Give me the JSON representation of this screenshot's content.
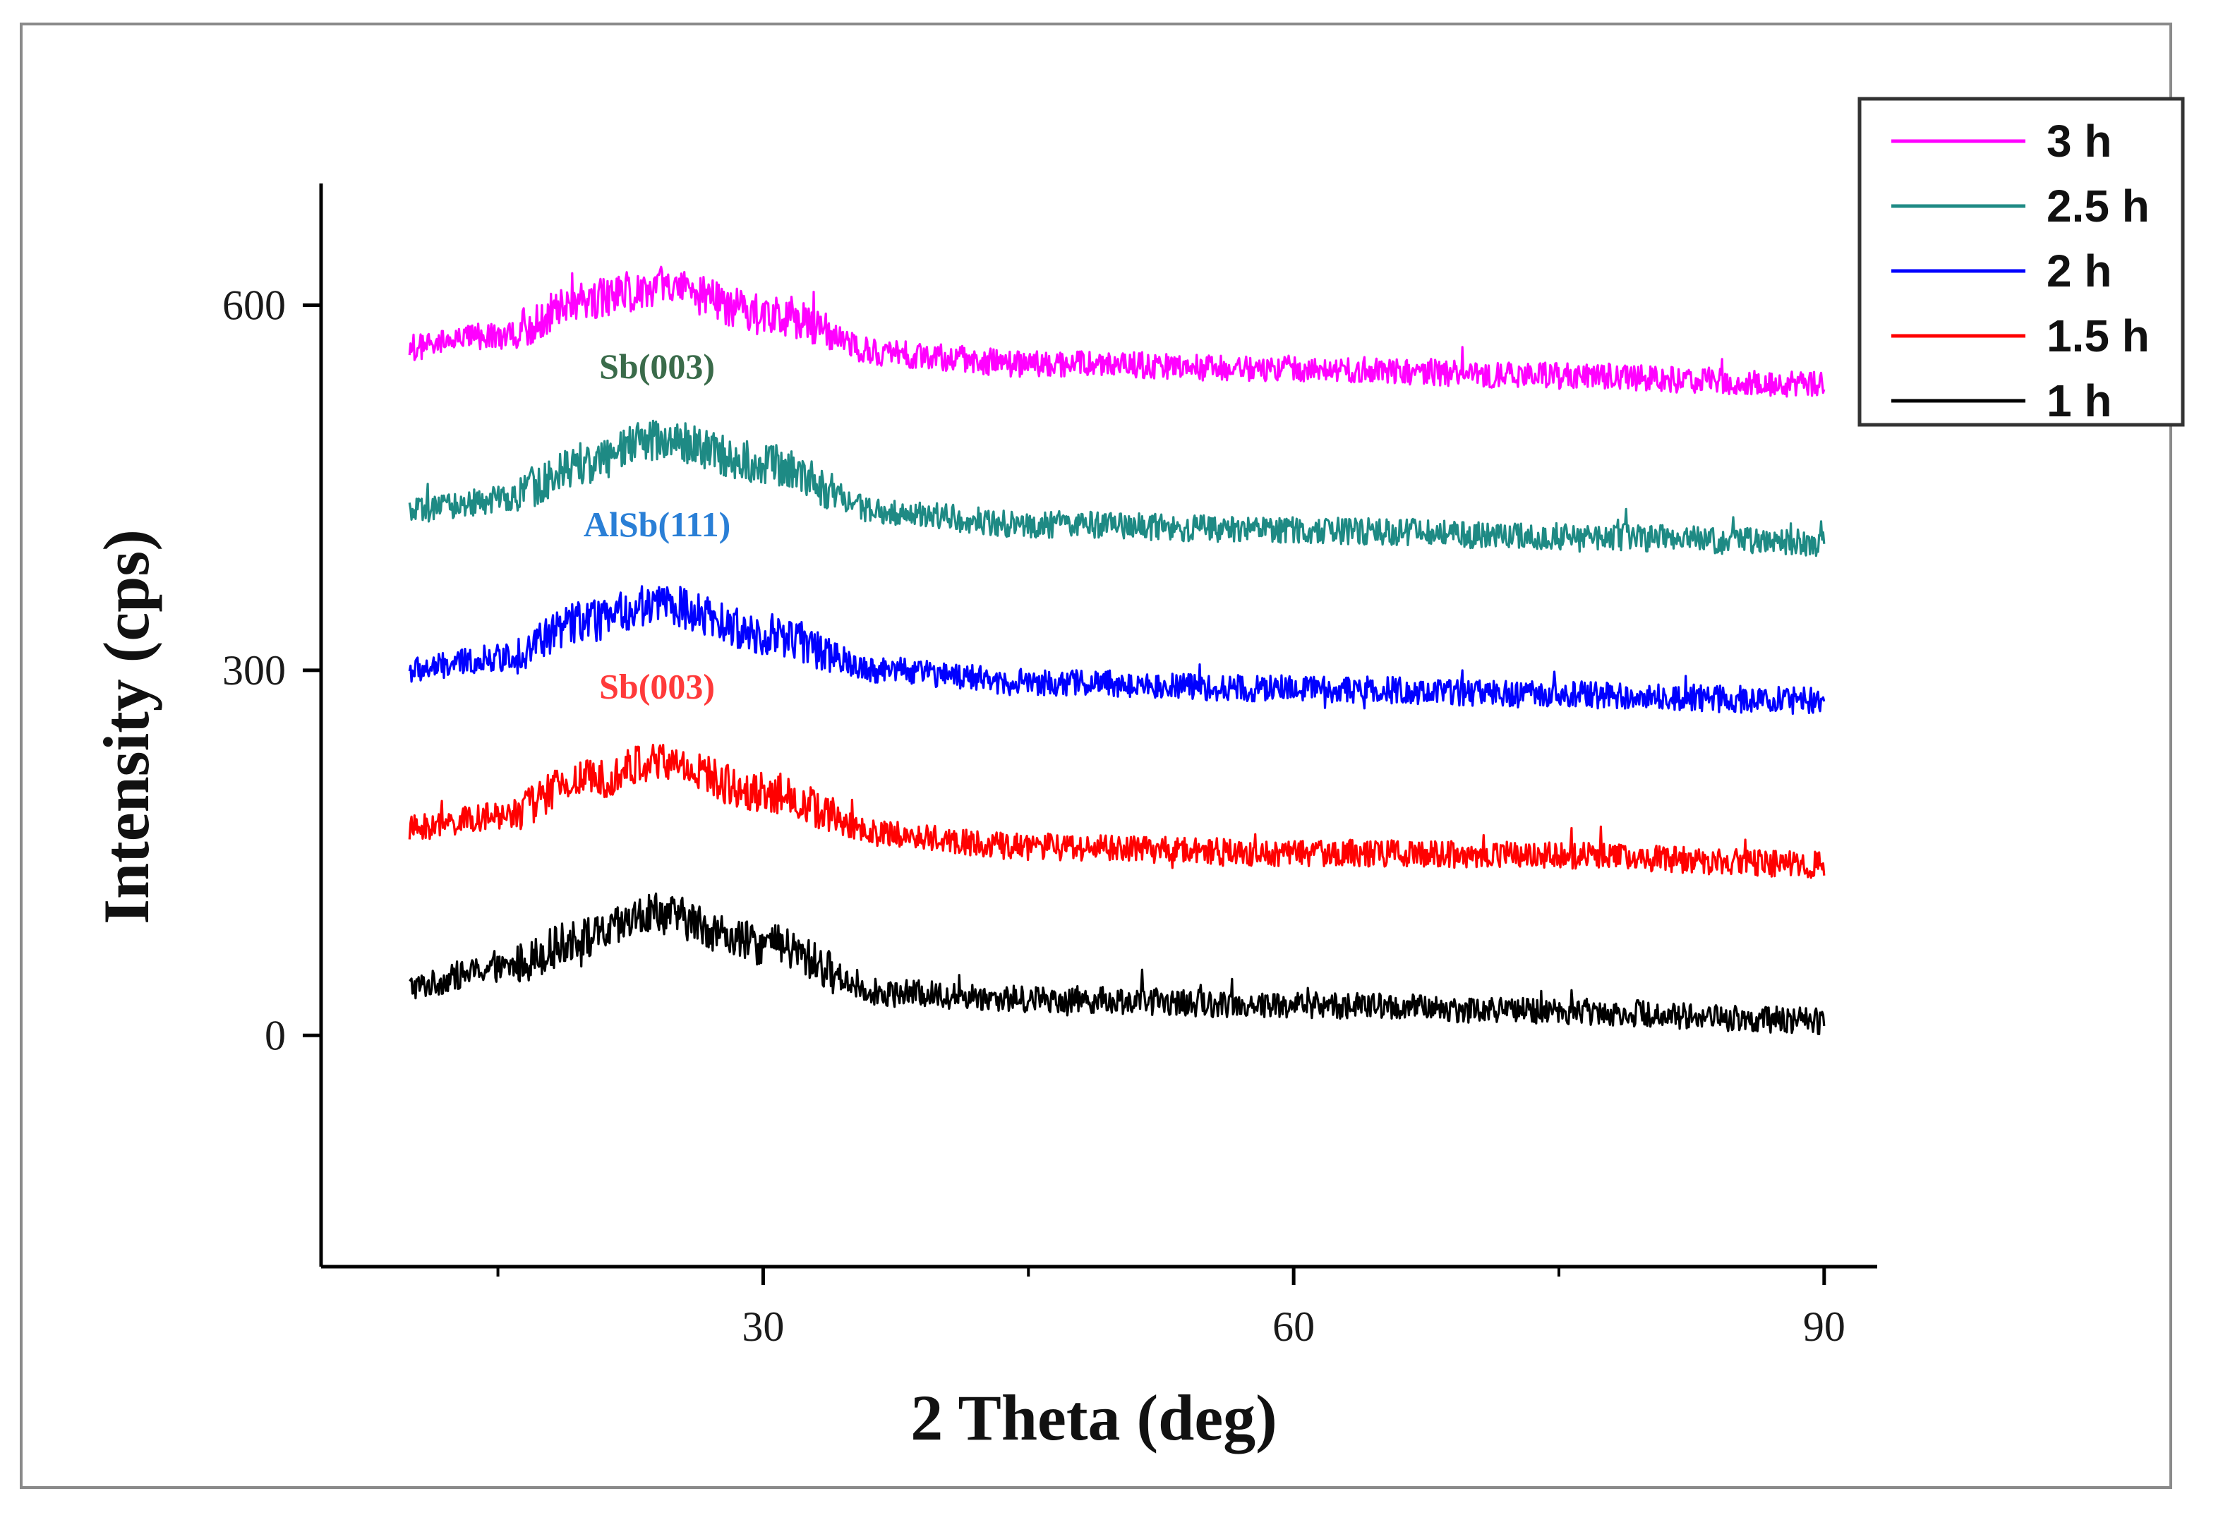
{
  "chart_data": {
    "type": "line",
    "title": "",
    "xlabel": "2 Theta (deg)",
    "ylabel": "Intensity (cps)",
    "xlim": [
      5,
      93
    ],
    "ylim": [
      -190,
      700
    ],
    "xticks": [
      30,
      60,
      90
    ],
    "yticks": [
      0,
      300,
      600
    ],
    "x_minor_ticks": [
      15,
      45,
      75
    ],
    "legend": {
      "position": "top-right",
      "labels": [
        "3 h",
        "2.5 h",
        "2 h",
        "1.5 h",
        "1 h"
      ]
    },
    "series": [
      {
        "name": "1 h",
        "color": "#000000",
        "x": [
          10,
          15,
          20,
          24,
          30,
          37,
          45,
          60,
          75,
          90
        ],
        "y": [
          40,
          55,
          80,
          100,
          75,
          35,
          30,
          25,
          20,
          12
        ]
      },
      {
        "name": "1.5 h",
        "color": "#ff0000",
        "x": [
          10,
          15,
          20,
          24,
          30,
          37,
          45,
          60,
          75,
          90
        ],
        "y": [
          170,
          180,
          210,
          225,
          200,
          165,
          155,
          150,
          148,
          140
        ]
      },
      {
        "name": "2 h",
        "color": "#0000ff",
        "x": [
          10,
          15,
          20,
          24,
          30,
          37,
          45,
          60,
          75,
          90
        ],
        "y": [
          300,
          310,
          340,
          355,
          330,
          300,
          290,
          285,
          280,
          275
        ]
      },
      {
        "name": "2.5 h",
        "color": "#1e8a84",
        "x": [
          10,
          15,
          20,
          24,
          30,
          37,
          45,
          60,
          75,
          90
        ],
        "y": [
          430,
          440,
          470,
          490,
          470,
          430,
          420,
          415,
          410,
          405
        ]
      },
      {
        "name": "3 h",
        "color": "#ff00ff",
        "x": [
          10,
          15,
          20,
          24,
          30,
          37,
          45,
          60,
          75,
          90
        ],
        "y": [
          565,
          575,
          605,
          615,
          595,
          560,
          552,
          548,
          542,
          535
        ]
      }
    ],
    "annotations": [
      {
        "text": "Sb(003)",
        "x": 24,
        "y": 540,
        "color": "#3a6b4a"
      },
      {
        "text": "AlSb(111)",
        "x": 24,
        "y": 410,
        "color": "#2a7fd6"
      },
      {
        "text": "Sb(003)",
        "x": 24,
        "y": 277,
        "color": "#ff3a3a"
      }
    ]
  }
}
